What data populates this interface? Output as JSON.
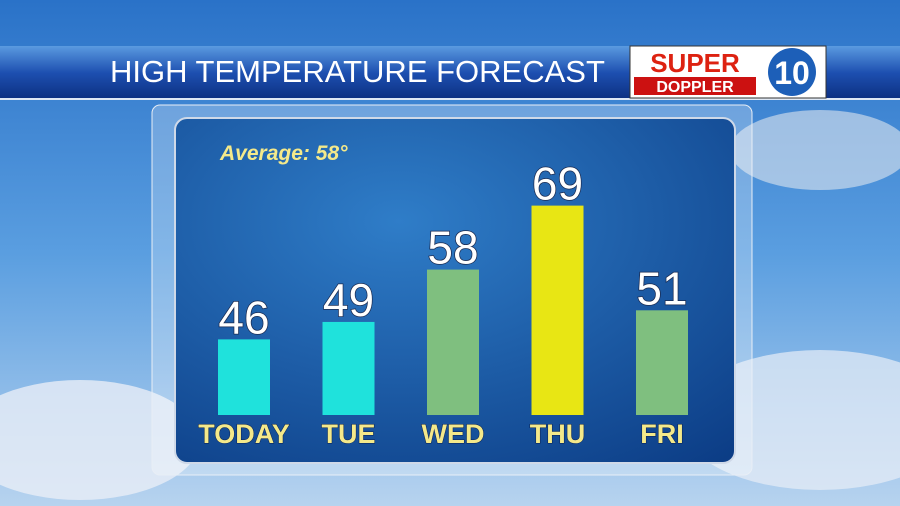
{
  "chart_data": {
    "type": "bar",
    "title": "HIGH TEMPERATURE FORECAST",
    "annotation": "Average: 58°",
    "logo": {
      "top": "SUPER",
      "bottom": "DOPPLER",
      "number": "10"
    },
    "categories": [
      "TODAY",
      "TUE",
      "WED",
      "THU",
      "FRI"
    ],
    "values": [
      46,
      49,
      58,
      69,
      51
    ],
    "colors": [
      "#1fe2dc",
      "#1fe2dc",
      "#7fbf7f",
      "#e8e614",
      "#7fbf7f"
    ],
    "ylim": [
      33,
      82
    ]
  }
}
